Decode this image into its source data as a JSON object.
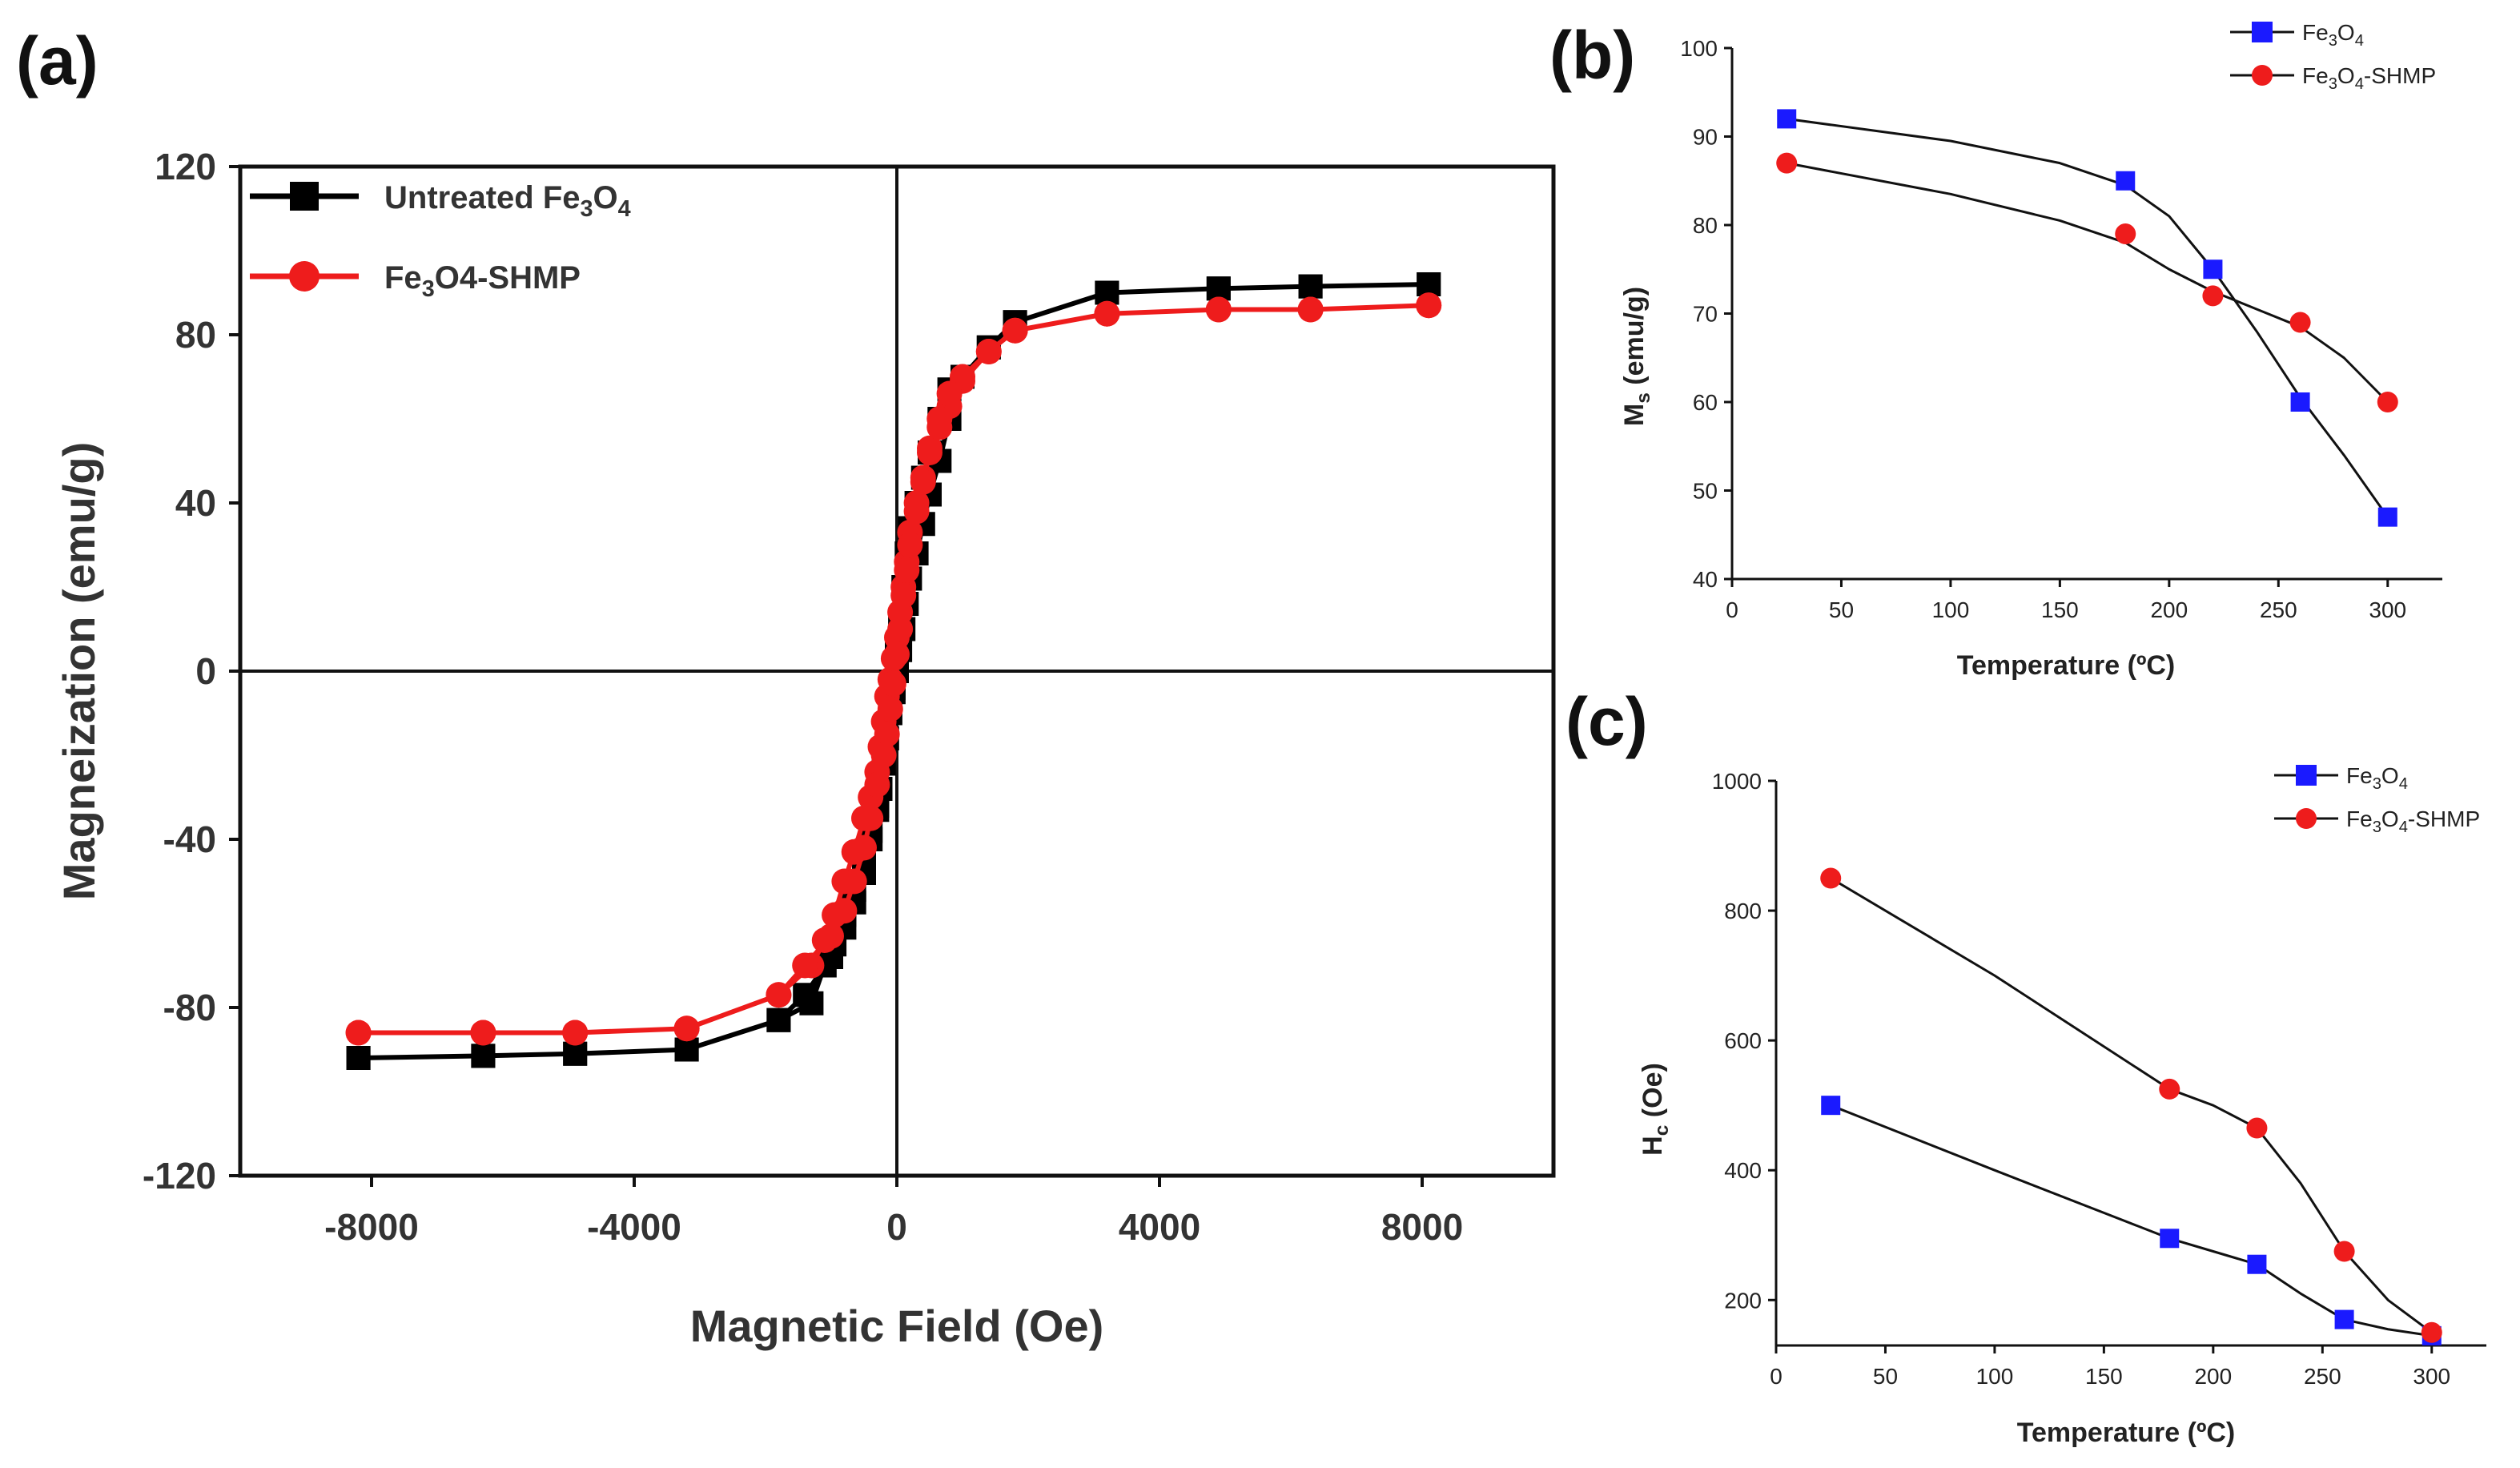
{
  "panels": {
    "a": "(a)",
    "b": "(b)",
    "c": "(c)"
  },
  "colors": {
    "black_series": "#000000",
    "red_series": "#ee1c1c",
    "blue_marker": "#1a1aff",
    "red_marker": "#ee1c1c",
    "fit_line": "#111111"
  },
  "chart_data": [
    {
      "id": "a",
      "type": "line",
      "title": "",
      "xlabel": "Magnetic Field (Oe)",
      "ylabel": "Magneization (emu/g)",
      "xlim": [
        -10000,
        10000
      ],
      "ylim": [
        -120,
        120
      ],
      "xticks": [
        -8000,
        -4000,
        0,
        4000,
        8000
      ],
      "yticks": [
        -120,
        -80,
        -40,
        0,
        40,
        80,
        120
      ],
      "xtick_labels": [
        "-8000",
        "-4000",
        "0",
        "4000",
        "8000"
      ],
      "ytick_labels": [
        "-120",
        "-80",
        "-40",
        "0",
        "40",
        "80",
        "120"
      ],
      "legend": [
        "Untreated Fe3O4",
        "Fe3O4-SHMP"
      ],
      "series": [
        {
          "name": "Untreated Fe3O4",
          "color": "black",
          "marker": "square",
          "x": [
            -8200,
            -6300,
            -4900,
            -3200,
            -1800,
            -1300,
            -1100,
            -950,
            -800,
            -650,
            -500,
            -400,
            -300,
            -250,
            -200,
            -150,
            -100,
            -50,
            0,
            50,
            100,
            150,
            200,
            300,
            400,
            500,
            650,
            800,
            1000,
            1400,
            1800,
            3200,
            4900,
            6300,
            8100,
            8100,
            6300,
            4900,
            3200,
            1800,
            1400,
            1000,
            800,
            650,
            500,
            400,
            300,
            200,
            150,
            100,
            50,
            0,
            -50,
            -100,
            -150,
            -200,
            -300,
            -400,
            -500,
            -650,
            -800,
            -1000,
            -1400,
            -1800,
            -3200,
            -4900,
            -6300,
            -8200
          ],
          "y": [
            -92,
            -91.5,
            -91,
            -90,
            -83,
            -79,
            -70,
            -65,
            -58,
            -52,
            -44,
            -38,
            -33,
            -28,
            -22,
            -16,
            -10,
            -5,
            0,
            5,
            10,
            16,
            22,
            28,
            35,
            42,
            50,
            60,
            70,
            77,
            83,
            90,
            91,
            91.5,
            92,
            92,
            91.5,
            91,
            90,
            83,
            77,
            70,
            67,
            60,
            52,
            46,
            40,
            34,
            28,
            20,
            12,
            4,
            -4,
            -10,
            -16,
            -22,
            -32,
            -40,
            -48,
            -55,
            -61,
            -68,
            -77,
            -83,
            -90,
            -91,
            -91.5,
            -92
          ]
        },
        {
          "name": "Fe3O4-SHMP",
          "color": "red",
          "marker": "circle",
          "x": [
            -8200,
            -6300,
            -4900,
            -3200,
            -1800,
            -1300,
            -1100,
            -950,
            -800,
            -650,
            -500,
            -400,
            -300,
            -250,
            -200,
            -150,
            -100,
            -50,
            0,
            50,
            100,
            150,
            200,
            300,
            400,
            500,
            650,
            800,
            1000,
            1400,
            1800,
            3200,
            4900,
            6300,
            8100,
            8100,
            6300,
            4900,
            3200,
            1800,
            1400,
            1000,
            800,
            650,
            500,
            400,
            300,
            200,
            150,
            100,
            50,
            0,
            -50,
            -100,
            -150,
            -200,
            -300,
            -400,
            -500,
            -650,
            -800,
            -1000,
            -1400,
            -1800,
            -3200,
            -4900,
            -6300,
            -8200
          ],
          "y": [
            -86,
            -86,
            -86,
            -85,
            -77,
            -70,
            -64,
            -58,
            -50,
            -43,
            -35,
            -30,
            -24,
            -18,
            -12,
            -6,
            -2,
            3,
            8,
            14,
            20,
            26,
            33,
            40,
            46,
            53,
            58,
            63,
            69,
            76,
            81,
            85,
            86,
            86,
            87,
            87,
            86,
            86,
            85,
            81,
            76,
            70,
            66,
            60,
            52,
            45,
            38,
            30,
            24,
            18,
            10,
            4,
            -3,
            -9,
            -15,
            -20,
            -27,
            -35,
            -42,
            -50,
            -57,
            -63,
            -70,
            -77,
            -85,
            -86,
            -86,
            -86
          ]
        }
      ]
    },
    {
      "id": "b",
      "type": "scatter",
      "title": "",
      "xlabel": "Temperature (ºC)",
      "ylabel": "Ms (emu/g)",
      "xlim": [
        0,
        325
      ],
      "ylim": [
        40,
        100
      ],
      "xticks": [
        0,
        50,
        100,
        150,
        200,
        250,
        300
      ],
      "yticks": [
        40,
        50,
        60,
        70,
        80,
        90,
        100
      ],
      "xtick_labels": [
        "0",
        "50",
        "100",
        "150",
        "200",
        "250",
        "300"
      ],
      "ytick_labels": [
        "40",
        "50",
        "60",
        "70",
        "80",
        "90",
        "100"
      ],
      "legend": [
        "Fe3O4",
        "Fe3O4-SHMP"
      ],
      "series": [
        {
          "name": "Fe3O4",
          "marker": "square",
          "color": "blue",
          "x": [
            25,
            180,
            220,
            260,
            300
          ],
          "y": [
            92,
            85,
            75,
            60,
            47
          ]
        },
        {
          "name": "Fe3O4-SHMP",
          "marker": "circle",
          "color": "red",
          "x": [
            25,
            180,
            220,
            260,
            300
          ],
          "y": [
            87,
            79,
            72,
            69,
            60
          ]
        }
      ],
      "fit_curves": [
        {
          "for": "Fe3O4",
          "x": [
            25,
            100,
            150,
            180,
            200,
            220,
            240,
            260,
            280,
            300
          ],
          "y": [
            92,
            89.5,
            87,
            84.5,
            81,
            75,
            68,
            60.5,
            54,
            47
          ]
        },
        {
          "for": "Fe3O4-SHMP",
          "x": [
            25,
            100,
            150,
            180,
            200,
            220,
            240,
            260,
            280,
            300
          ],
          "y": [
            87,
            83.5,
            80.5,
            78,
            75,
            72.5,
            70.5,
            68.5,
            65,
            60
          ]
        }
      ]
    },
    {
      "id": "c",
      "type": "line",
      "title": "",
      "xlabel": "Temperature (ºC)",
      "ylabel": "Hc (Oe)",
      "xlim": [
        0,
        325
      ],
      "ylim": [
        130,
        1000
      ],
      "xticks": [
        0,
        50,
        100,
        150,
        200,
        250,
        300
      ],
      "yticks": [
        200,
        400,
        600,
        800,
        1000
      ],
      "xtick_labels": [
        "0",
        "50",
        "100",
        "150",
        "200",
        "250",
        "300"
      ],
      "ytick_labels": [
        "200",
        "400",
        "600",
        "800",
        "1000"
      ],
      "legend": [
        "Fe3O4",
        "Fe3O4-SHMP"
      ],
      "series": [
        {
          "name": "Fe3O4",
          "marker": "square",
          "color": "blue",
          "x": [
            25,
            180,
            220,
            260,
            300
          ],
          "y": [
            500,
            295,
            255,
            170,
            145
          ]
        },
        {
          "name": "Fe3O4-SHMP",
          "marker": "circle",
          "color": "red",
          "x": [
            25,
            180,
            220,
            260,
            300
          ],
          "y": [
            850,
            525,
            465,
            275,
            150
          ]
        }
      ],
      "fit_curves": [
        {
          "for": "Fe3O4",
          "x": [
            25,
            100,
            180,
            200,
            220,
            240,
            260,
            280,
            300
          ],
          "y": [
            500,
            400,
            295,
            275,
            255,
            210,
            170,
            155,
            145
          ]
        },
        {
          "for": "Fe3O4-SHMP",
          "x": [
            25,
            100,
            180,
            200,
            220,
            240,
            260,
            280,
            300
          ],
          "y": [
            850,
            700,
            525,
            500,
            465,
            380,
            275,
            200,
            150
          ]
        }
      ]
    }
  ]
}
